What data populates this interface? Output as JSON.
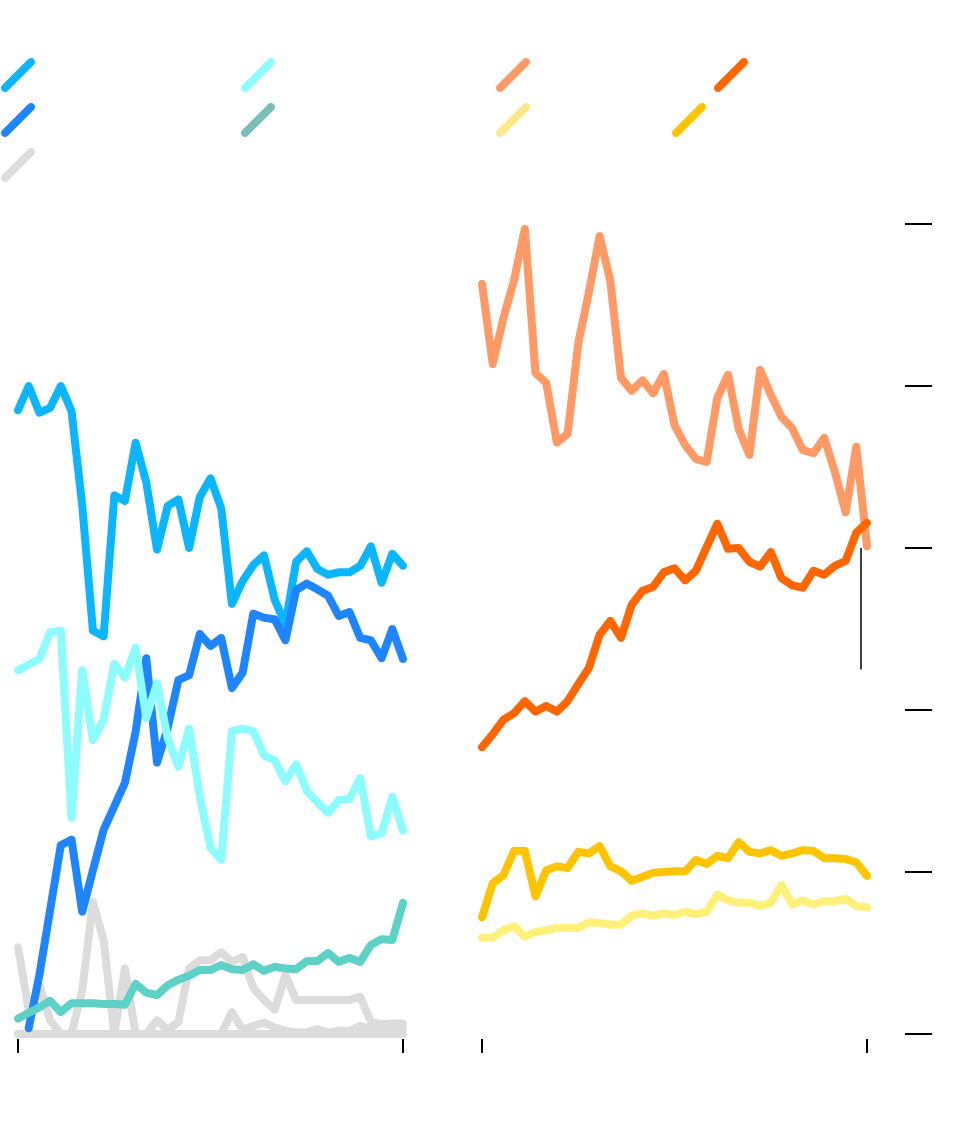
{
  "chart_data": {
    "type": "line",
    "title": "",
    "xlabel": "",
    "ylabel": "",
    "ylim": [
      0,
      100
    ],
    "y_ticks": [
      0,
      20,
      40,
      60,
      80,
      100
    ],
    "y_tick_labels_shown": false,
    "x_tick_labels_shown": false,
    "grid": false,
    "legend": "top",
    "legend_colors": [
      "#0bb5ff",
      "#1f85ff",
      "#dcdcdc",
      "#8cfcff",
      "#7abfb8",
      "#ff9966",
      "#fde98a",
      "#ff6600",
      "#ffc400"
    ],
    "panels": [
      {
        "position": "left",
        "series": [
          {
            "color": "#0bb5ff",
            "values": [
              77.0,
              80.0,
              76.7,
              77.3,
              80.0,
              76.9,
              65.3,
              49.8,
              49.1,
              66.5,
              65.8,
              73.0,
              68.1,
              59.8,
              65.2,
              66.0,
              60.0,
              66.3,
              68.6,
              64.9,
              53.1,
              55.9,
              57.9,
              59.1,
              53.6,
              50.6,
              58.3,
              59.6,
              57.4,
              56.7,
              57.0,
              57.0,
              57.8,
              60.2,
              55.7,
              59.3,
              57.8
            ]
          },
          {
            "color": "#1f85ff",
            "values": [
              null,
              0.7,
              7.3,
              15.3,
              23.3,
              24.0,
              15.1,
              20.2,
              25.2,
              28.1,
              31.0,
              37.3,
              46.4,
              33.5,
              37.8,
              43.7,
              44.3,
              49.4,
              47.9,
              48.9,
              42.7,
              44.6,
              51.9,
              51.4,
              51.2,
              48.6,
              54.8,
              55.6,
              54.9,
              54.1,
              51.6,
              52.1,
              48.9,
              48.6,
              46.4,
              50.0,
              46.3
            ]
          },
          {
            "color": "#8cfcff",
            "values": [
              44.9,
              45.6,
              46.3,
              49.6,
              49.8,
              26.7,
              44.9,
              36.3,
              38.8,
              45.7,
              44.0,
              47.7,
              39.0,
              43.3,
              36.5,
              33.0,
              37.7,
              29.3,
              23.0,
              21.5,
              37.4,
              37.7,
              37.4,
              34.4,
              33.8,
              31.2,
              33.3,
              30.0,
              28.6,
              27.3,
              28.9,
              29.0,
              31.6,
              24.4,
              24.8,
              29.3,
              25.1
            ]
          },
          {
            "color": "#5dd1c6",
            "values": [
              1.9,
              2.6,
              3.3,
              4.1,
              2.7,
              3.8,
              3.8,
              3.8,
              3.7,
              3.7,
              3.6,
              6.2,
              5.1,
              4.8,
              6.0,
              6.7,
              7.2,
              7.9,
              7.9,
              8.5,
              8.0,
              7.9,
              8.6,
              7.8,
              8.3,
              8.1,
              8.0,
              9.0,
              9.0,
              10.0,
              8.9,
              9.4,
              8.9,
              11.0,
              11.7,
              11.6,
              16.2
            ]
          },
          {
            "color": "#dcdcdc",
            "values": [
              10.7,
              3.0,
              6.0,
              1.7,
              0,
              0,
              5.4,
              16.3,
              11.6,
              0,
              8.1,
              0,
              0,
              0,
              0,
              0,
              0,
              0,
              0,
              0,
              0,
              0,
              0,
              0,
              0,
              0,
              0,
              0,
              0,
              0,
              0,
              0,
              0,
              0,
              0,
              0,
              0
            ]
          },
          {
            "color": "#dcdcdc",
            "values": [
              0,
              0,
              0,
              0,
              0,
              0,
              0,
              0,
              0,
              0,
              0,
              0,
              0,
              1.7,
              0.5,
              1.5,
              8.1,
              9.1,
              9.1,
              10.1,
              8.9,
              9.5,
              5.7,
              4.2,
              3.0,
              7.3,
              4.2,
              4.2,
              4.2,
              4.2,
              4.2,
              4.2,
              4.6,
              1.5,
              1.2,
              1.3,
              1.3
            ]
          },
          {
            "color": "#dcdcdc",
            "values": [
              0,
              0,
              0,
              0,
              0,
              0,
              0,
              0,
              0,
              0,
              0,
              0,
              0,
              0,
              0,
              0,
              0,
              0,
              0,
              0,
              2.7,
              0.5,
              1.0,
              1.4,
              0.8,
              0.4,
              0.2,
              0.2,
              0.6,
              0.2,
              0.4,
              0.4,
              1.0,
              0.6,
              0.6,
              0.6,
              0.7
            ]
          }
        ]
      },
      {
        "position": "right",
        "series": [
          {
            "color": "#ff9966",
            "values": [
              92.6,
              82.7,
              88.4,
              93.1,
              99.4,
              81.6,
              80.4,
              73.0,
              74.1,
              85.3,
              91.6,
              98.5,
              93.0,
              81.0,
              79.4,
              80.7,
              79.1,
              81.5,
              75.2,
              72.7,
              71.0,
              70.6,
              78.5,
              81.4,
              74.7,
              71.5,
              82.0,
              78.9,
              76.2,
              74.8,
              72.1,
              71.7,
              73.6,
              69.4,
              64.4,
              72.5,
              60.2
            ]
          },
          {
            "color": "#ff6600",
            "values": [
              35.4,
              37.0,
              38.8,
              39.6,
              41.1,
              39.8,
              40.5,
              39.8,
              41.1,
              43.2,
              45.2,
              49.3,
              51.0,
              48.9,
              53.0,
              54.7,
              55.2,
              57.0,
              57.5,
              56.0,
              57.2,
              60.1,
              63.0,
              59.9,
              60.0,
              58.3,
              57.7,
              59.5,
              56.3,
              55.4,
              55.1,
              57.2,
              56.7,
              57.8,
              58.4,
              61.9,
              63.1
            ]
          },
          {
            "color": "#ffc400",
            "values": [
              14.4,
              18.6,
              19.6,
              22.6,
              22.6,
              17.0,
              20.2,
              20.7,
              20.5,
              22.5,
              22.3,
              23.2,
              20.7,
              20.1,
              18.9,
              19.4,
              19.9,
              20.0,
              20.1,
              20.1,
              21.5,
              21.0,
              22.0,
              21.7,
              23.7,
              22.5,
              22.3,
              22.7,
              22.0,
              22.3,
              22.7,
              22.6,
              21.7,
              21.7,
              21.6,
              21.2,
              19.5
            ]
          },
          {
            "color": "#fff07a",
            "values": [
              11.9,
              11.9,
              12.8,
              13.3,
              12.0,
              12.6,
              12.8,
              13.1,
              13.1,
              13.1,
              13.8,
              13.7,
              13.5,
              13.5,
              14.6,
              14.9,
              14.6,
              14.9,
              14.7,
              15.1,
              14.8,
              15.1,
              17.2,
              16.5,
              16.2,
              16.2,
              15.8,
              16.2,
              18.4,
              16.0,
              16.5,
              16.0,
              16.4,
              16.4,
              16.7,
              15.8,
              15.6
            ]
          }
        ],
        "annotation_line_range": [
          45,
          60
        ]
      }
    ]
  }
}
